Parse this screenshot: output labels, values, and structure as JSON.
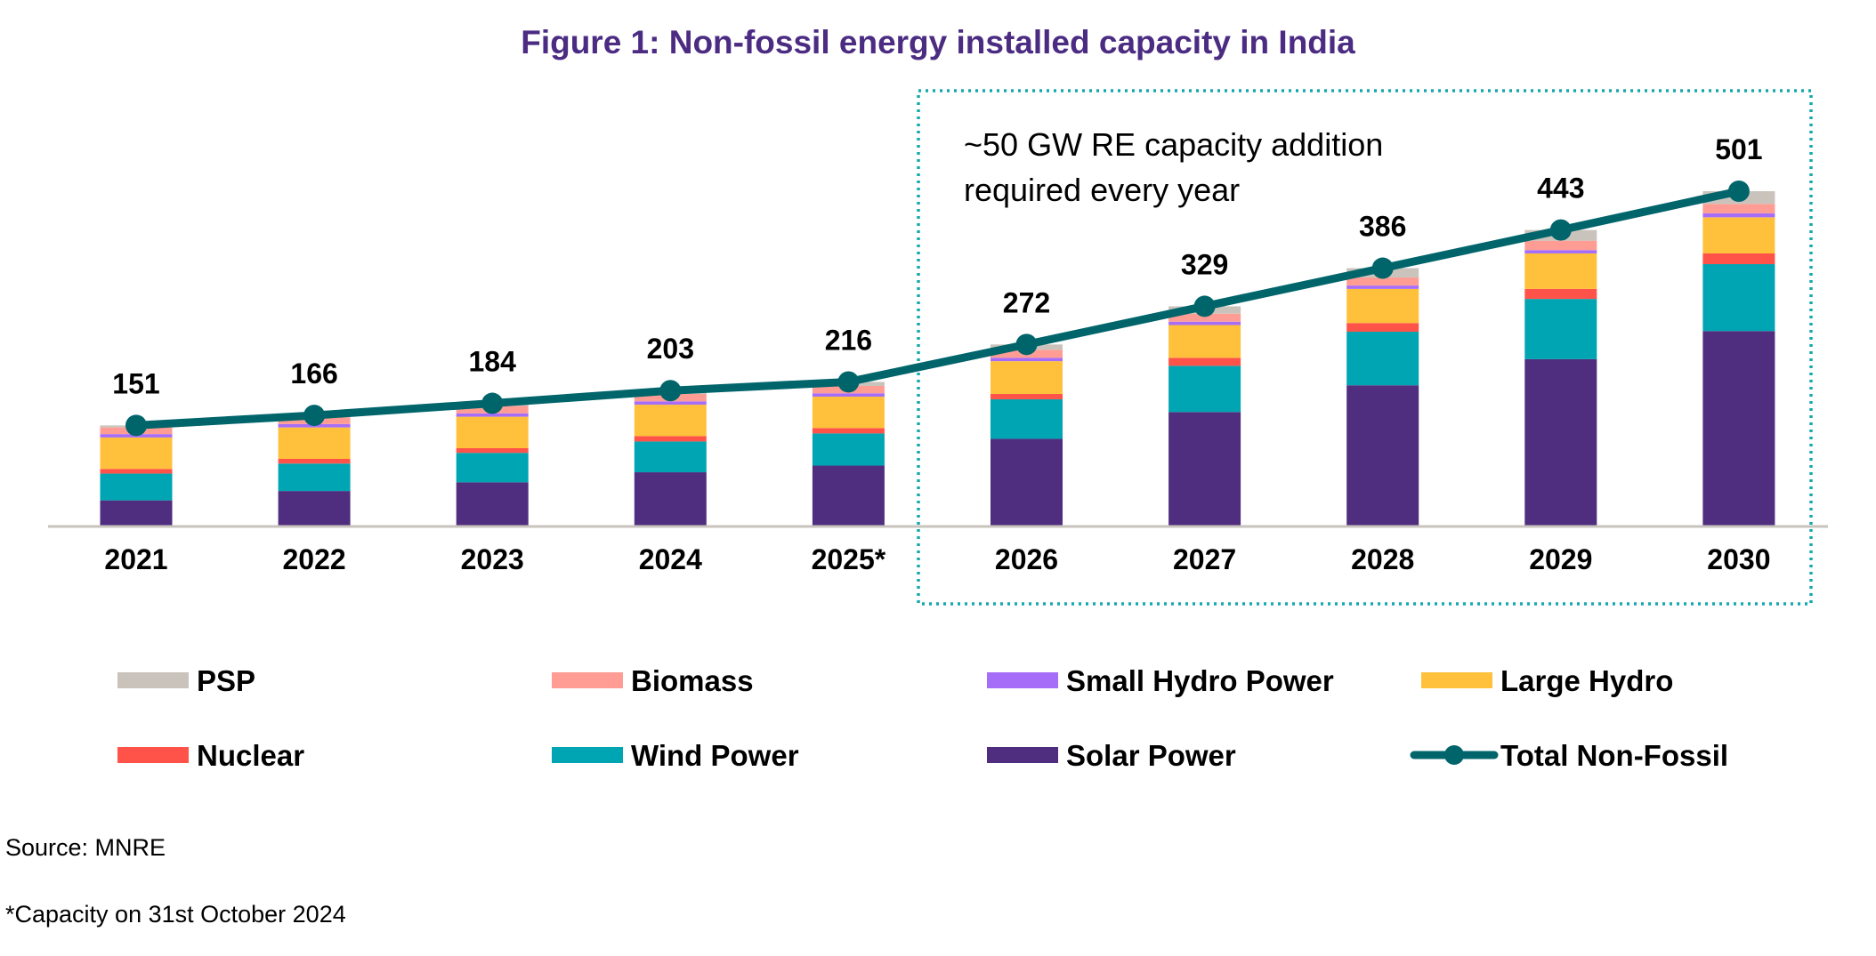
{
  "chart_data": {
    "type": "bar",
    "stacked": true,
    "title": "Figure 1: Non-fossil energy installed capacity in India",
    "xlabel": "",
    "ylabel": "",
    "unit": "GW",
    "categories": [
      "2021",
      "2022",
      "2023",
      "2024",
      "2025*",
      "2026",
      "2027",
      "2028",
      "2029",
      "2030"
    ],
    "ylim": [
      0,
      501
    ],
    "grid": false,
    "series": [
      {
        "name": "Solar Power",
        "color": "#4F2D7F",
        "values": [
          39,
          53,
          66,
          81,
          91,
          131,
          171,
          211,
          250,
          292
        ]
      },
      {
        "name": "Wind Power",
        "color": "#00A5B3",
        "values": [
          40,
          41,
          44,
          46,
          48,
          59,
          69,
          80,
          90,
          100
        ]
      },
      {
        "name": "Nuclear",
        "color": "#FF5349",
        "values": [
          7,
          7,
          7,
          8,
          8,
          8,
          12,
          13,
          15,
          16
        ]
      },
      {
        "name": "Large Hydro",
        "color": "#FFC13B",
        "values": [
          47,
          47,
          47,
          47,
          47,
          49,
          49,
          51,
          53,
          54
        ]
      },
      {
        "name": "Small Hydro Power",
        "color": "#A66EF8",
        "values": [
          5,
          5,
          5,
          5,
          5,
          5,
          5,
          5,
          5,
          6
        ]
      },
      {
        "name": "Biomass",
        "color": "#FF9C94",
        "values": [
          10,
          10,
          11,
          11,
          11,
          12,
          12,
          12,
          14,
          14
        ]
      },
      {
        "name": "PSP",
        "color": "#CAC3BC",
        "values": [
          3,
          3,
          4,
          5,
          6,
          8,
          11,
          14,
          16,
          19
        ]
      }
    ],
    "line_series": {
      "name": "Total Non-Fossil",
      "color": "#00656B",
      "values": [
        151,
        166,
        184,
        203,
        216,
        272,
        329,
        386,
        443,
        501
      ],
      "data_labels": [
        "151",
        "166",
        "184",
        "203",
        "216",
        "272",
        "329",
        "386",
        "443",
        "501"
      ]
    },
    "annotation": {
      "lines": [
        "~50 GW RE capacity addition",
        "required every year"
      ],
      "box_color": "#16A9AE",
      "box_style": "dotted",
      "box_covers_categories": [
        "2026",
        "2027",
        "2028",
        "2029",
        "2030"
      ]
    },
    "legend": {
      "placement": "bottom",
      "items": [
        {
          "label": "PSP",
          "color": "#CAC3BC",
          "kind": "bar"
        },
        {
          "label": "Biomass",
          "color": "#FF9C94",
          "kind": "bar"
        },
        {
          "label": "Small Hydro Power",
          "color": "#A66EF8",
          "kind": "bar"
        },
        {
          "label": "Large Hydro",
          "color": "#FFC13B",
          "kind": "bar"
        },
        {
          "label": "Nuclear",
          "color": "#FF5349",
          "kind": "bar"
        },
        {
          "label": "Wind Power",
          "color": "#00A5B3",
          "kind": "bar"
        },
        {
          "label": "Solar Power",
          "color": "#4F2D7F",
          "kind": "bar"
        },
        {
          "label": "Total Non-Fossil",
          "color": "#00656B",
          "kind": "line"
        }
      ]
    }
  },
  "notes": {
    "source": "Source: MNRE",
    "footnote": "*Capacity on 31st October 2024"
  },
  "colors": {
    "title": "#4B2C82",
    "axis": "#C9C3BD"
  }
}
